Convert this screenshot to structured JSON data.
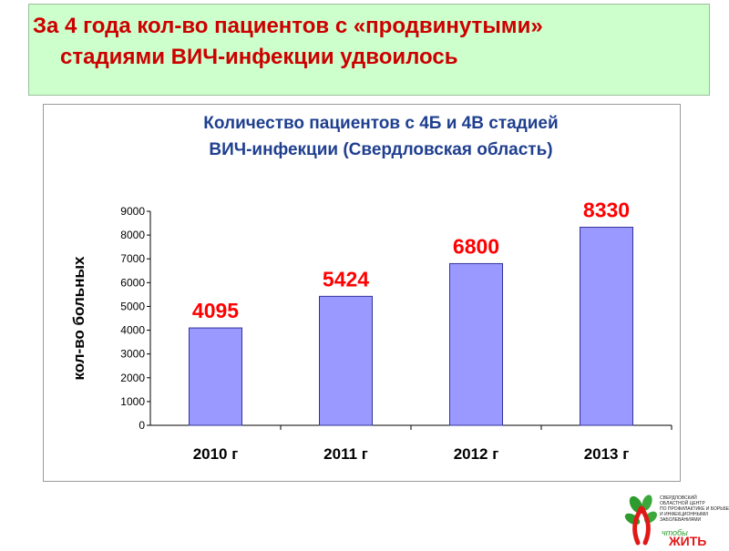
{
  "slide": {
    "headline_line1": "За 4 года кол-во пациентов с «продвинутыми»",
    "headline_line2": "стадиями ВИЧ-инфекции удвоилось"
  },
  "chart_data": {
    "type": "bar",
    "title": "Количество пациентов с 4Б и 4В стадией ВИЧ-инфекции  (Свердловская область)",
    "title_lines": [
      "Количество пациентов с 4Б и 4В стадией",
      "ВИЧ-инфекции  (Свердловская область)"
    ],
    "categories": [
      "2010 г",
      "2011 г",
      "2012 г",
      "2013 г"
    ],
    "values": [
      4095,
      5424,
      6800,
      8330
    ],
    "xlabel": "",
    "ylabel": "кол-во больных",
    "ylim": [
      0,
      9000
    ],
    "yticks": [
      0,
      1000,
      2000,
      3000,
      4000,
      5000,
      6000,
      7000,
      8000,
      9000
    ],
    "grid": false,
    "legend": "none",
    "colors": {
      "bar_fill": "#9999ff",
      "bar_stroke": "#333399",
      "data_label": "#ff0000",
      "title": "#1f3f8f"
    }
  },
  "logo": {
    "brand_lines": [
      "СВЕРДЛОВСКИЙ",
      "ОБЛАСТНОЙ ЦЕНТР",
      "ПО ПРОФИЛАКТИКЕ И БОРЬБЕ СО СПИД",
      "И ИНФЕКЦИОННЫМИ",
      "ЗАБОЛЕВАНИЯМИ"
    ],
    "slogan_small": "чтобы",
    "slogan_big": "ЖИТЬ",
    "icon": "red-ribbon-leaves-icon"
  }
}
